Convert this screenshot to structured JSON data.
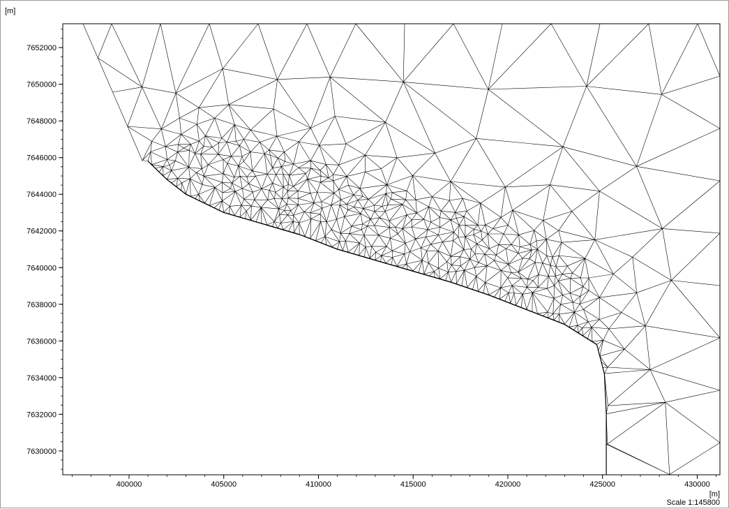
{
  "chart_data": {
    "type": "mesh",
    "x_unit": "[m]",
    "y_unit": "[m]",
    "xlim": [
      396500,
      431200
    ],
    "ylim": [
      7628700,
      7653300
    ],
    "x_ticks": [
      400000,
      405000,
      410000,
      415000,
      420000,
      425000,
      430000
    ],
    "y_ticks": [
      7630000,
      7632000,
      7634000,
      7636000,
      7638000,
      7640000,
      7642000,
      7644000,
      7646000,
      7648000,
      7650000,
      7652000
    ],
    "coastline": [
      [
        401000,
        7645800
      ],
      [
        402000,
        7644800
      ],
      [
        403000,
        7644000
      ],
      [
        404000,
        7643500
      ],
      [
        405000,
        7643000
      ],
      [
        407000,
        7642400
      ],
      [
        409000,
        7641800
      ],
      [
        411000,
        7641000
      ],
      [
        413000,
        7640400
      ],
      [
        415000,
        7639800
      ],
      [
        417000,
        7639200
      ],
      [
        419000,
        7638500
      ],
      [
        421000,
        7637700
      ],
      [
        423000,
        7636900
      ],
      [
        424700,
        7635800
      ],
      [
        425100,
        7634200
      ],
      [
        425200,
        7632000
      ],
      [
        425200,
        7628700
      ]
    ],
    "fine_zone_upper": [
      [
        401000,
        7645800
      ],
      [
        403000,
        7646600
      ],
      [
        405000,
        7646800
      ],
      [
        407000,
        7646300
      ],
      [
        409000,
        7645600
      ],
      [
        411000,
        7644800
      ],
      [
        413000,
        7644200
      ],
      [
        415000,
        7643500
      ],
      [
        417000,
        7642900
      ],
      [
        419000,
        7642200
      ],
      [
        421000,
        7641400
      ],
      [
        423000,
        7640600
      ],
      [
        424000,
        7639000
      ],
      [
        424600,
        7637400
      ],
      [
        424700,
        7635800
      ]
    ],
    "grid": false
  },
  "labels": {
    "unit_top": "[m]",
    "unit_bottom": "[m]",
    "scale": "Scale 1:145800"
  }
}
